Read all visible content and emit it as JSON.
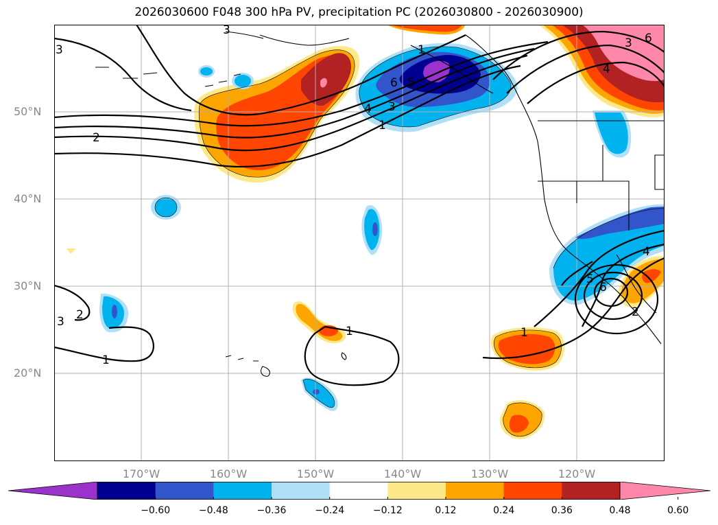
{
  "title": "2026030600 F048 300 hPa PV, precipitation PC (2026030800 - 2026030900)",
  "map": {
    "projection": "cylindrical",
    "extent": {
      "lon_min": -180,
      "lon_max": -110,
      "lat_min": 10,
      "lat_max": 60
    },
    "lat_labels": [
      "50°N",
      "40°N",
      "30°N",
      "20°N"
    ],
    "lon_labels": [
      "170°W",
      "160°W",
      "150°W",
      "140°W",
      "130°W",
      "120°W"
    ],
    "pv_contour_labels": [
      "3",
      "3",
      "2",
      "1",
      "4",
      "3",
      "5",
      "6",
      "4",
      "3",
      "1",
      "6",
      "3",
      "2",
      "1",
      "1",
      "1",
      "4",
      "5",
      "6",
      "2"
    ],
    "colors": {
      "c_m060": "#9933cc",
      "c_m048": "#000090",
      "c_m036": "#3355cc",
      "c_m024": "#00b2ee",
      "c_m012": "#b0e0f8",
      "c_0": "#ffffff",
      "c_p012": "#fde88a",
      "c_p024": "#ffa500",
      "c_p036": "#ff4500",
      "c_p048": "#b22222",
      "c_p060": "#ff88aa"
    }
  },
  "colorbar": {
    "tick_labels": [
      "−0.60",
      "−0.48",
      "−0.36",
      "−0.24",
      "−0.12",
      "0.12",
      "0.24",
      "0.36",
      "0.48",
      "0.60"
    ],
    "colors": [
      "#9933cc",
      "#000090",
      "#3355cc",
      "#00b2ee",
      "#b0e0f8",
      "#ffffff",
      "#fde88a",
      "#ffa500",
      "#ff4500",
      "#b22222",
      "#ff88aa"
    ]
  }
}
